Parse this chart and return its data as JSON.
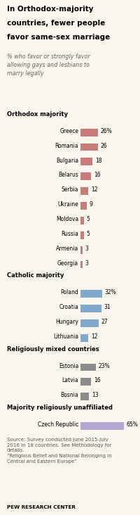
{
  "title_line1": "In Orthodox-majority",
  "title_line2": "countries, fewer people",
  "title_line3": "favor same-sex marriage",
  "subtitle": "% who favor or strongly favor\nallowing gays and lesbians to\nmarry legally",
  "groups": [
    {
      "label": "Orthodox majority",
      "countries": [
        "Greece",
        "Romania",
        "Bulgaria",
        "Belarus",
        "Serbia",
        "Ukraine",
        "Moldova",
        "Russia",
        "Armenia",
        "Georgia"
      ],
      "values": [
        26,
        26,
        18,
        16,
        12,
        9,
        5,
        5,
        3,
        3
      ],
      "color": "#c97b78",
      "show_pct_first": true
    },
    {
      "label": "Catholic majority",
      "countries": [
        "Poland",
        "Croatia",
        "Hungary",
        "Lithuania"
      ],
      "values": [
        32,
        31,
        27,
        12
      ],
      "color": "#7fa8cc",
      "show_pct_first": true
    },
    {
      "label": "Religiously mixed countries",
      "countries": [
        "Estonia",
        "Latvia",
        "Bosnia"
      ],
      "values": [
        23,
        16,
        13
      ],
      "color": "#8c8c8c",
      "show_pct_first": true
    },
    {
      "label": "Majority religiously unaffiliated",
      "countries": [
        "Czech Republic"
      ],
      "values": [
        65
      ],
      "color": "#b3a8d4",
      "show_pct_first": true
    }
  ],
  "source_text": "Source: Survey conducted June 2015-July\n2016 in 18 countries. See Methodology for\ndetails.\n“Religious Belief and National Belonging in\nCentral and Eastern Europe”",
  "footer": "PEW RESEARCH CENTER",
  "bg_color": "#faf6ee",
  "chart_bg": "#ffffff",
  "max_bar_value": 70
}
